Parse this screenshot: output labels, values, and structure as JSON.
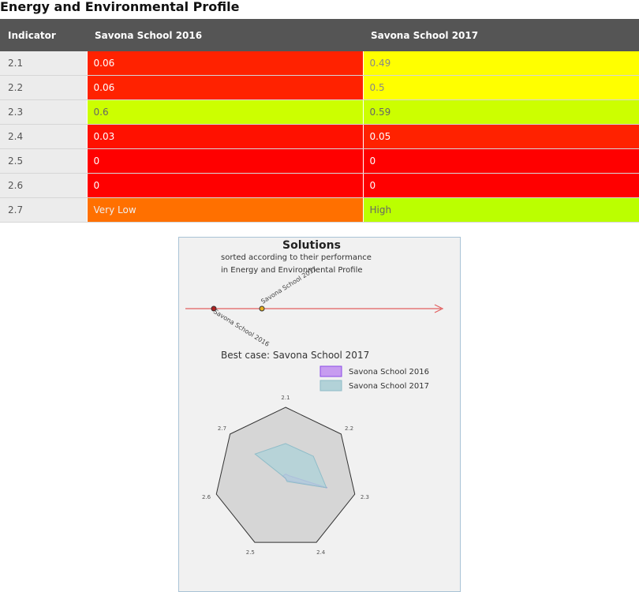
{
  "page_title": "Energy and Environmental Profile",
  "table": {
    "headers": [
      "Indicator",
      "Savona School 2016",
      "Savona School 2017"
    ],
    "rows": [
      {
        "indicator": "2.1",
        "v2016": "0.06",
        "c2016": "#ff2200",
        "t2016": "#ffffff",
        "v2017": "0.49",
        "c2017": "#ffff00",
        "t2017": "#888888"
      },
      {
        "indicator": "2.2",
        "v2016": "0.06",
        "c2016": "#ff2200",
        "t2016": "#ffffff",
        "v2017": "0.5",
        "c2017": "#ffff00",
        "t2017": "#888888"
      },
      {
        "indicator": "2.3",
        "v2016": "0.6",
        "c2016": "#ccff00",
        "t2016": "#666666",
        "v2017": "0.59",
        "c2017": "#ccff00",
        "t2017": "#666666"
      },
      {
        "indicator": "2.4",
        "v2016": "0.03",
        "c2016": "#ff1100",
        "t2016": "#ffffff",
        "v2017": "0.05",
        "c2017": "#ff2200",
        "t2017": "#ffffff"
      },
      {
        "indicator": "2.5",
        "v2016": "0",
        "c2016": "#ff0000",
        "t2016": "#ffffff",
        "v2017": "0",
        "c2017": "#ff0000",
        "t2017": "#ffffff"
      },
      {
        "indicator": "2.6",
        "v2016": "0",
        "c2016": "#ff0000",
        "t2016": "#ffffff",
        "v2017": "0",
        "c2017": "#ff0000",
        "t2017": "#ffffff"
      },
      {
        "indicator": "2.7",
        "v2016": "Very Low",
        "c2016": "#ff7000",
        "t2016": "#eeeeee",
        "v2017": "High",
        "c2017": "#bbff00",
        "t2017": "#666666"
      }
    ]
  },
  "panel": {
    "title": "Solutions",
    "subtitle_line1": "sorted according to their performance",
    "subtitle_line2": "in Energy and Environmental Profile",
    "ranking": [
      {
        "name": "Savona School 2016",
        "score": 0.0
      },
      {
        "name": "Savona School 2017",
        "score": 1.0
      }
    ],
    "best_case": "Best case: Savona School 2017"
  },
  "chart_data": {
    "type": "radar",
    "categories": [
      "2.1",
      "2.2",
      "2.3",
      "2.4",
      "2.5",
      "2.6",
      "2.7"
    ],
    "rmax": 1,
    "series": [
      {
        "name": "Savona School 2016",
        "values": [
          0.06,
          0.06,
          0.6,
          0.03,
          0,
          0,
          0.05
        ],
        "color": "#8a4be6",
        "fill": "#c79cf0"
      },
      {
        "name": "Savona School 2017",
        "values": [
          0.49,
          0.5,
          0.59,
          0.05,
          0,
          0,
          0.55
        ],
        "color": "#8fbcc8",
        "fill": "#b2d2d8"
      }
    ]
  }
}
